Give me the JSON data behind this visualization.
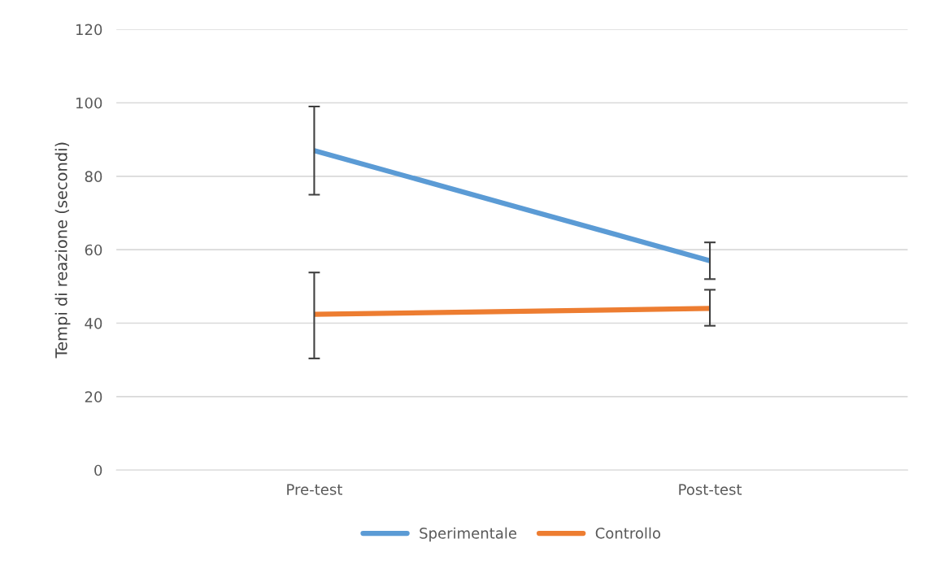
{
  "chart_data": {
    "type": "line",
    "ylabel": "Tempi di reazione (secondi)",
    "categories": [
      "Pre-test",
      "Post-test"
    ],
    "series": [
      {
        "name": "Sperimentale",
        "color": "#5b9bd5",
        "values": [
          87,
          57
        ],
        "errors": [
          12,
          5
        ]
      },
      {
        "name": "Controllo",
        "color": "#ed7d31",
        "values": [
          42.4,
          44
        ],
        "errors": [
          [
            30.4,
            53.8
          ],
          [
            39.3,
            49.1
          ]
        ]
      }
    ],
    "ylim": [
      0,
      120
    ],
    "yticks": [
      0,
      20,
      40,
      60,
      80,
      100,
      120
    ],
    "grid": "y",
    "legend": "bottom",
    "marker": "none",
    "line_style": "solid"
  }
}
